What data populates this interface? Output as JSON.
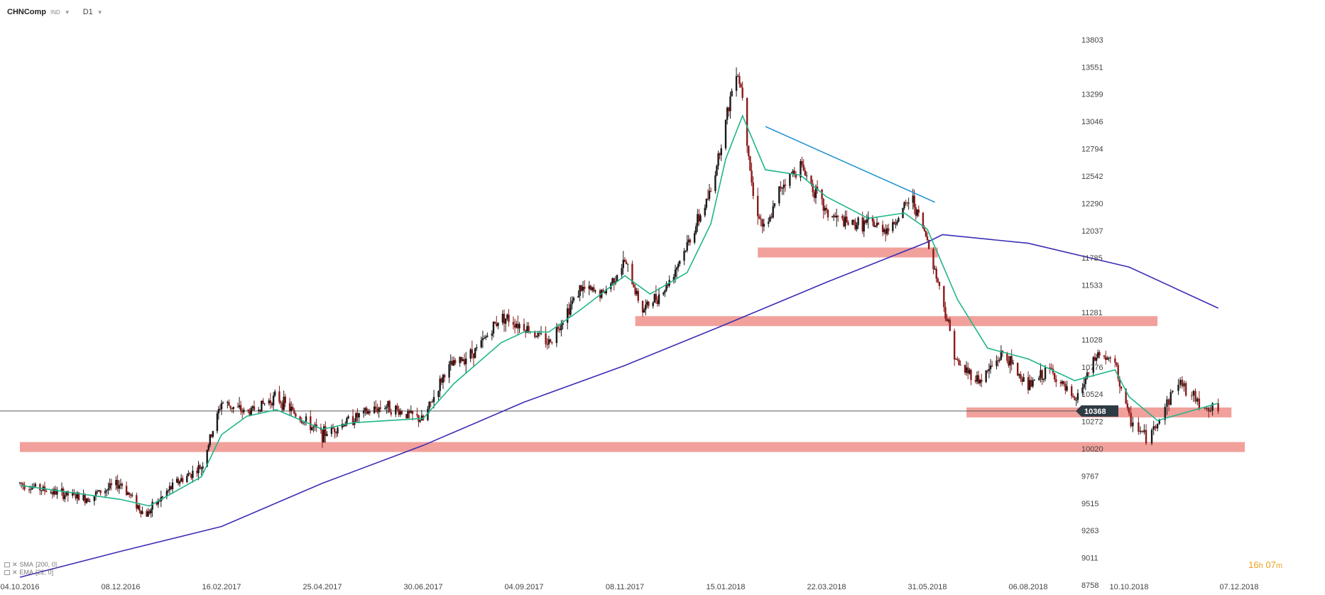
{
  "header": {
    "symbol": "CHNComp",
    "instrument_type": "IND",
    "timeframe": "D1"
  },
  "timer": {
    "hours": "16",
    "h_unit": "h",
    "minutes": "07",
    "m_unit": "m"
  },
  "indicators": [
    {
      "label": "SMA",
      "params": "[200, 0]",
      "color": "#3a2db5"
    },
    {
      "label": "EMA",
      "params": "[22, 0]",
      "color": "#1fb58a"
    }
  ],
  "chart_data": {
    "type": "candlestick",
    "title": "",
    "y_ticks": [
      13803,
      13551,
      13299,
      13046,
      12794,
      12542,
      12290,
      12037,
      11785,
      11533,
      11281,
      11028,
      10776,
      10524,
      10272,
      10020,
      9767,
      9515,
      9263,
      9011,
      8758
    ],
    "x_ticks": [
      "04.10.2016",
      "08.12.2016",
      "16.02.2017",
      "25.04.2017",
      "30.06.2017",
      "04.09.2017",
      "08.11.2017",
      "15.01.2018",
      "22.03.2018",
      "31.05.2018",
      "06.08.2018",
      "10.10.2018",
      "07.12.2018"
    ],
    "current_price": 10368,
    "ylim": [
      8758,
      13803
    ],
    "grid": false,
    "price_anchors": [
      [
        "04.10.2016",
        9700
      ],
      [
        "25.10.2016",
        9620
      ],
      [
        "15.11.2016",
        9560
      ],
      [
        "08.12.2016",
        9700
      ],
      [
        "25.12.2016",
        9400
      ],
      [
        "15.01.2017",
        9700
      ],
      [
        "02.02.2017",
        9850
      ],
      [
        "16.02.2017",
        10450
      ],
      [
        "05.03.2017",
        10350
      ],
      [
        "25.03.2017",
        10500
      ],
      [
        "10.04.2017",
        10300
      ],
      [
        "25.04.2017",
        10150
      ],
      [
        "15.05.2017",
        10300
      ],
      [
        "05.06.2017",
        10420
      ],
      [
        "30.06.2017",
        10280
      ],
      [
        "15.07.2017",
        10750
      ],
      [
        "05.08.2017",
        10950
      ],
      [
        "20.08.2017",
        11250
      ],
      [
        "04.09.2017",
        11150
      ],
      [
        "20.09.2017",
        11000
      ],
      [
        "10.10.2017",
        11500
      ],
      [
        "25.10.2017",
        11450
      ],
      [
        "08.11.2017",
        11750
      ],
      [
        "20.11.2017",
        11300
      ],
      [
        "05.12.2017",
        11500
      ],
      [
        "20.12.2017",
        11900
      ],
      [
        "05.01.2018",
        12400
      ],
      [
        "15.01.2018",
        13050
      ],
      [
        "22.01.2018",
        13550
      ],
      [
        "26.01.2018",
        13300
      ],
      [
        "02.02.2018",
        12350
      ],
      [
        "10.02.2018",
        12000
      ],
      [
        "20.02.2018",
        12450
      ],
      [
        "05.03.2018",
        12650
      ],
      [
        "22.03.2018",
        12200
      ],
      [
        "05.04.2018",
        12100
      ],
      [
        "20.04.2018",
        12100
      ],
      [
        "05.05.2018",
        12050
      ],
      [
        "20.05.2018",
        12350
      ],
      [
        "31.05.2018",
        11950
      ],
      [
        "10.06.2018",
        11400
      ],
      [
        "20.06.2018",
        10800
      ],
      [
        "05.07.2018",
        10650
      ],
      [
        "20.07.2018",
        10900
      ],
      [
        "06.08.2018",
        10600
      ],
      [
        "20.08.2018",
        10750
      ],
      [
        "05.09.2018",
        10450
      ],
      [
        "20.09.2018",
        10900
      ],
      [
        "01.10.2018",
        10800
      ],
      [
        "10.10.2018",
        10300
      ],
      [
        "20.10.2018",
        10100
      ],
      [
        "05.11.2018",
        10650
      ],
      [
        "15.11.2018",
        10450
      ],
      [
        "26.11.2018",
        10368
      ]
    ],
    "ema_22": [
      [
        "04.10.2016",
        9680
      ],
      [
        "08.12.2016",
        9550
      ],
      [
        "28.12.2016",
        9490
      ],
      [
        "02.02.2017",
        9760
      ],
      [
        "16.02.2017",
        10150
      ],
      [
        "05.03.2017",
        10320
      ],
      [
        "25.03.2017",
        10380
      ],
      [
        "25.04.2017",
        10200
      ],
      [
        "15.05.2017",
        10260
      ],
      [
        "30.06.2017",
        10300
      ],
      [
        "20.07.2017",
        10620
      ],
      [
        "20.08.2017",
        11000
      ],
      [
        "04.09.2017",
        11100
      ],
      [
        "20.09.2017",
        11100
      ],
      [
        "10.10.2017",
        11300
      ],
      [
        "08.11.2017",
        11620
      ],
      [
        "25.11.2017",
        11450
      ],
      [
        "20.12.2017",
        11650
      ],
      [
        "05.01.2018",
        12100
      ],
      [
        "15.01.2018",
        12700
      ],
      [
        "26.01.2018",
        13100
      ],
      [
        "10.02.2018",
        12600
      ],
      [
        "05.03.2018",
        12550
      ],
      [
        "22.03.2018",
        12350
      ],
      [
        "20.04.2018",
        12150
      ],
      [
        "15.05.2018",
        12200
      ],
      [
        "31.05.2018",
        12050
      ],
      [
        "20.06.2018",
        11400
      ],
      [
        "10.07.2018",
        10950
      ],
      [
        "06.08.2018",
        10850
      ],
      [
        "05.09.2018",
        10650
      ],
      [
        "01.10.2018",
        10750
      ],
      [
        "10.10.2018",
        10500
      ],
      [
        "25.10.2018",
        10280
      ],
      [
        "26.11.2018",
        10440
      ]
    ],
    "sma_200": [
      [
        "04.10.2016",
        8830
      ],
      [
        "08.12.2016",
        9070
      ],
      [
        "16.02.2017",
        9300
      ],
      [
        "25.04.2017",
        9700
      ],
      [
        "30.06.2017",
        10050
      ],
      [
        "04.09.2017",
        10450
      ],
      [
        "08.11.2017",
        10790
      ],
      [
        "15.01.2018",
        11170
      ],
      [
        "22.03.2018",
        11560
      ],
      [
        "31.05.2018",
        11930
      ],
      [
        "10.06.2018",
        12000
      ],
      [
        "06.08.2018",
        11920
      ],
      [
        "10.10.2018",
        11700
      ],
      [
        "26.11.2018",
        11320
      ]
    ],
    "trendline": [
      [
        "10.02.2018",
        13000
      ],
      [
        "05.06.2018",
        12300
      ]
    ],
    "support_zones": [
      {
        "from": "04.10.2016",
        "to": "10.12.2018",
        "price": 10035
      },
      {
        "from": "26.06.2018",
        "to": "03.12.2018",
        "price": 10355
      },
      {
        "from": "15.11.2017",
        "to": "25.10.2018",
        "price": 11200
      },
      {
        "from": "05.02.2018",
        "to": "07.06.2018",
        "price": 11835
      }
    ],
    "colors": {
      "up_candle": "#1a1a1a",
      "down_candle": "#8b1a1a",
      "ema": "#1fb58a",
      "sma": "#3a2db5",
      "trendline": "#1a8fd1",
      "zone": "#ef8f8a",
      "price_tag": "#2f3b44"
    }
  }
}
